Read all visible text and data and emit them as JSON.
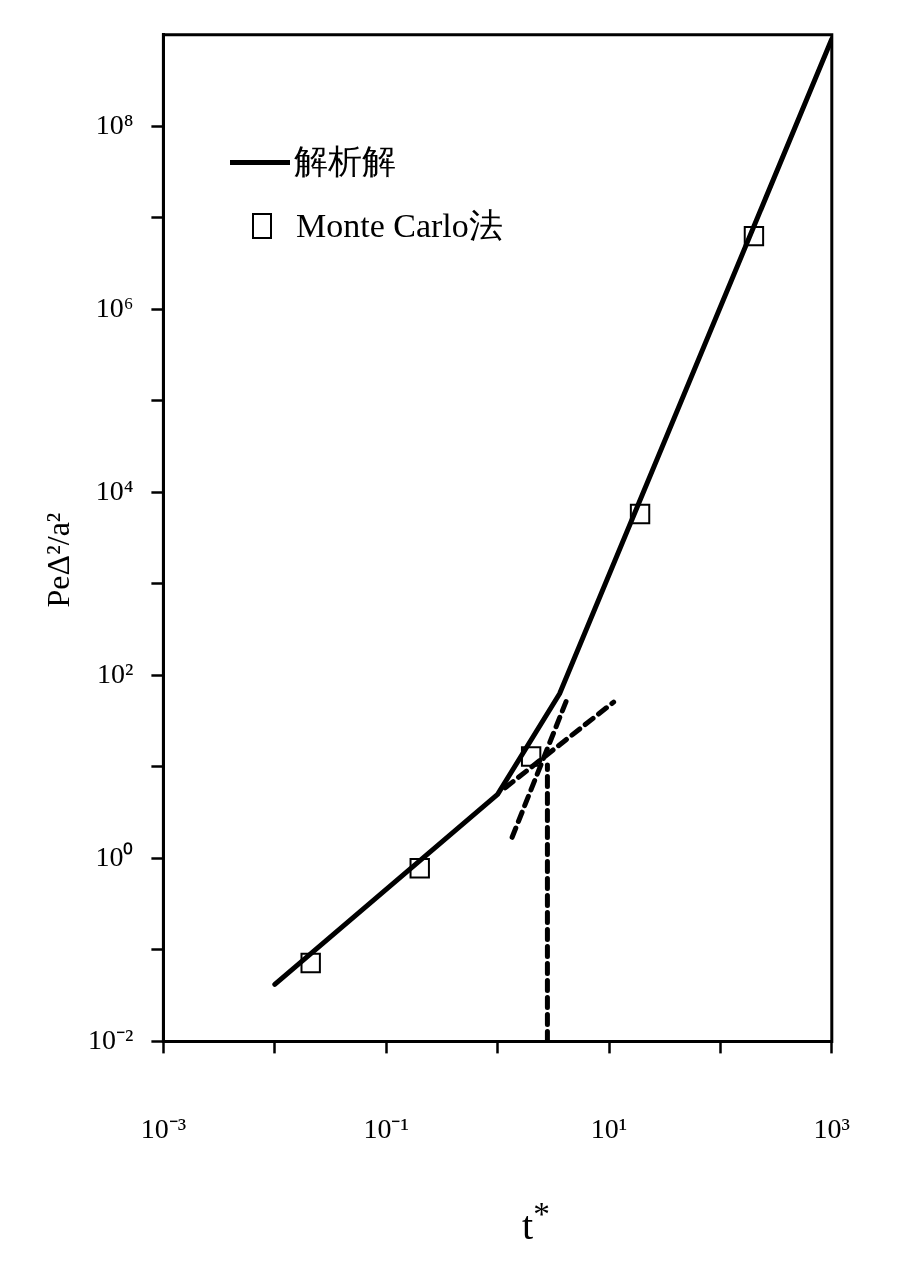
{
  "chart_data": {
    "type": "line",
    "xlabel": "t$^{*}$",
    "ylabel": "PeΔ²/a²",
    "log": "xy",
    "grid": false,
    "legend": "top left",
    "xlim": [
      0.001,
      1000
    ],
    "ylim": [
      0.01,
      1000000000
    ],
    "xticks": [
      {
        "value": 0.001,
        "label": "10⁻³"
      },
      {
        "value": 0.01,
        "label": null
      },
      {
        "value": 0.1,
        "label": "10⁻¹"
      },
      {
        "value": 1,
        "label": null
      },
      {
        "value": 10,
        "label": "10¹"
      },
      {
        "value": 100,
        "label": null
      },
      {
        "value": 1000,
        "label": "10³"
      }
    ],
    "yticks": [
      {
        "value": 0.01,
        "label": "10⁻²"
      },
      {
        "value": 0.1,
        "label": null
      },
      {
        "value": 1,
        "label": "10⁰"
      },
      {
        "value": 10,
        "label": null
      },
      {
        "value": 100,
        "label": "10²"
      },
      {
        "value": 1000,
        "label": null
      },
      {
        "value": 10000,
        "label": "10⁴"
      },
      {
        "value": 100000,
        "label": null
      },
      {
        "value": 1000000,
        "label": "10⁶"
      },
      {
        "value": 10000000,
        "label": null
      },
      {
        "value": 100000000,
        "label": "10⁸"
      }
    ],
    "series": [
      {
        "name": "解析解",
        "color": "#000000",
        "line_style": "solid",
        "marker": "none",
        "x": [
          0.01,
          1,
          3.6,
          1000
        ],
        "values": [
          0.042,
          5,
          63,
          900000000
        ]
      },
      {
        "name": "Monte Carlo法",
        "type": "scatter",
        "color": "#000000",
        "marker": "square",
        "x": [
          0.021,
          0.2,
          2,
          19,
          200
        ],
        "values": [
          0.072,
          0.78,
          13,
          5800,
          6300000
        ]
      },
      {
        "color": "#000000",
        "line_style": "dashed",
        "marker": "none",
        "x": [
          1.17,
          11
        ],
        "values": [
          5.9,
          51
        ]
      },
      {
        "color": "#000000",
        "line_style": "dashed",
        "marker": "none",
        "x": [
          1.35,
          4.2
        ],
        "values": [
          1.7,
          55
        ]
      },
      {
        "color": "#000000",
        "line_style": "dashed",
        "marker": "none",
        "x": [
          2.8,
          2.8
        ],
        "values": [
          0.01,
          10.5
        ]
      }
    ]
  }
}
